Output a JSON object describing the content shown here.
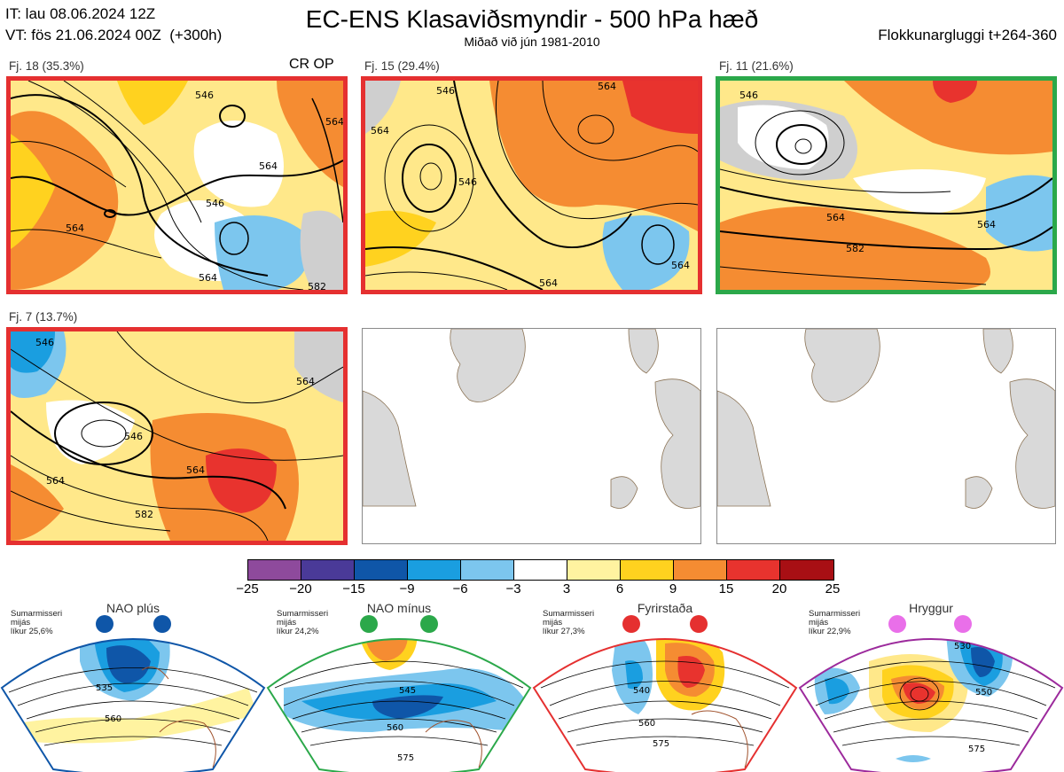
{
  "header": {
    "init_line": "IT: lau 08.06.2024 12Z",
    "valid_line": "VT: fös 21.06.2024 00Z  (+300h)",
    "title": "EC-ENS Klasaviðsmyndir - 500 hPa hæð",
    "subtitle": "Miðað við jún 1981-2010",
    "window": "Flokkunargluggi t+264-360"
  },
  "clusters": [
    {
      "label": "Fj. 18 (35.3%)",
      "frame": "red",
      "tag": "CR OP",
      "contours": [
        "546",
        "564",
        "564",
        "546",
        "564",
        "564",
        "582"
      ]
    },
    {
      "label": "Fj. 15 (29.4%)",
      "frame": "red",
      "contours": [
        "546",
        "546",
        "564",
        "564",
        "564",
        "564"
      ]
    },
    {
      "label": "Fj. 11 (21.6%)",
      "frame": "green",
      "contours": [
        "546",
        "564",
        "564",
        "582"
      ]
    },
    {
      "label": "Fj. 7 (13.7%)",
      "frame": "red",
      "contours": [
        "546",
        "546",
        "564",
        "564",
        "582",
        "564"
      ]
    }
  ],
  "colorbar": {
    "ticks": [
      "−25",
      "−20",
      "−15",
      "−9",
      "−6",
      "−3",
      "3",
      "6",
      "9",
      "15",
      "20",
      "25"
    ],
    "colors": [
      "#8e4a9c",
      "#4a3a98",
      "#0f56a8",
      "#1a9ee0",
      "#7cc6ee",
      "#ffffff",
      "#fff3a0",
      "#ffd21f",
      "#f58c32",
      "#e8332e",
      "#a80f14"
    ]
  },
  "regimes": [
    {
      "name": "NAO plús",
      "info": [
        "Sumarmisseri",
        "mijás",
        "líkur 25,6%"
      ],
      "color": "#0f56a8",
      "contours": [
        "535",
        "560"
      ]
    },
    {
      "name": "NAO mínus",
      "info": [
        "Sumarmisseri",
        "mijás",
        "líkur 24,2%"
      ],
      "color": "#2ba84a",
      "contours": [
        "545",
        "560",
        "575"
      ]
    },
    {
      "name": "Fyrirstaða",
      "info": [
        "Sumarmisseri",
        "mijás",
        "líkur 27,3%"
      ],
      "color": "#e53030",
      "contours": [
        "540",
        "560",
        "575"
      ]
    },
    {
      "name": "Hryggur",
      "info": [
        "Sumarmisseri",
        "mijás",
        "líkur 22,9%"
      ],
      "color": "#9c2a9c",
      "contours": [
        "530",
        "550",
        "575"
      ]
    }
  ]
}
